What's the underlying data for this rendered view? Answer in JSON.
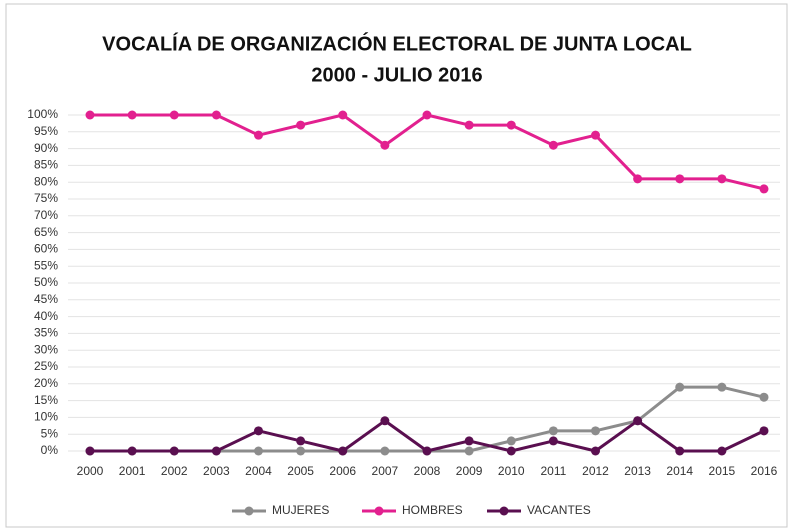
{
  "chart_data": {
    "type": "line",
    "title": [
      "VOCALÍA DE ORGANIZACIÓN ELECTORAL DE JUNTA LOCAL",
      "2000 - JULIO 2016"
    ],
    "categories": [
      "2000",
      "2001",
      "2002",
      "2003",
      "2004",
      "2005",
      "2006",
      "2007",
      "2008",
      "2009",
      "2010",
      "2011",
      "2012",
      "2013",
      "2014",
      "2015",
      "2016"
    ],
    "series": [
      {
        "name": "MUJERES",
        "color": "#8c8c8c",
        "values": [
          0,
          0,
          0,
          0,
          0,
          0,
          0,
          0,
          0,
          0,
          3,
          6,
          6,
          9,
          19,
          19,
          16
        ]
      },
      {
        "name": "HOMBRES",
        "color": "#e2208f",
        "values": [
          100,
          100,
          100,
          100,
          94,
          97,
          100,
          91,
          100,
          97,
          97,
          91,
          94,
          81,
          81,
          81,
          78
        ]
      },
      {
        "name": "VACANTES",
        "color": "#5a0f50",
        "values": [
          0,
          0,
          0,
          0,
          6,
          3,
          0,
          9,
          0,
          3,
          0,
          3,
          0,
          9,
          0,
          0,
          6
        ]
      }
    ],
    "ylim": [
      0,
      100
    ],
    "yticks": [
      {
        "value": 0,
        "label": "0%"
      },
      {
        "value": 5,
        "label": "5%"
      },
      {
        "value": 10,
        "label": "10%"
      },
      {
        "value": 15,
        "label": "15%"
      },
      {
        "value": 20,
        "label": "20%"
      },
      {
        "value": 25,
        "label": "25%"
      },
      {
        "value": 30,
        "label": "30%"
      },
      {
        "value": 35,
        "label": "35%"
      },
      {
        "value": 40,
        "label": "40%"
      },
      {
        "value": 45,
        "label": "45%"
      },
      {
        "value": 50,
        "label": "50%"
      },
      {
        "value": 55,
        "label": "55%"
      },
      {
        "value": 60,
        "label": "60%"
      },
      {
        "value": 65,
        "label": "65%"
      },
      {
        "value": 70,
        "label": "70%"
      },
      {
        "value": 75,
        "label": "75%"
      },
      {
        "value": 80,
        "label": "80%"
      },
      {
        "value": 85,
        "label": "85%"
      },
      {
        "value": 90,
        "label": "90%"
      },
      {
        "value": 95,
        "label": "95%"
      },
      {
        "value": 100,
        "label": "100%"
      }
    ],
    "grid": true,
    "legend": "bottom"
  }
}
